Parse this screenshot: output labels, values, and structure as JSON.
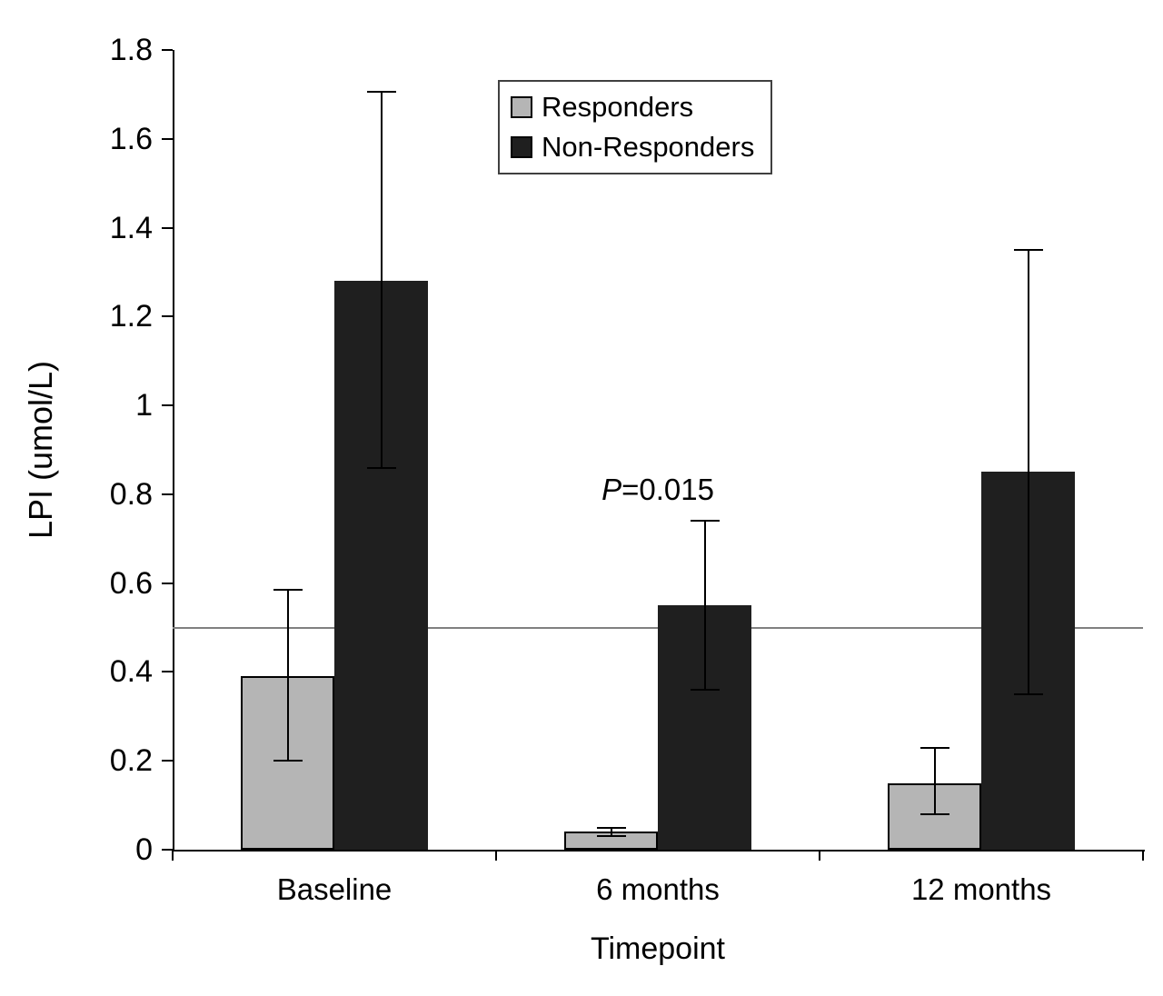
{
  "chart_data": {
    "type": "bar",
    "title": "",
    "xlabel": "Timepoint",
    "ylabel": "LPI (umol/L)",
    "categories": [
      "Baseline",
      "6 months",
      "12 months"
    ],
    "series": [
      {
        "name": "Responders",
        "color": "#b5b5b5",
        "values": [
          0.39,
          0.04,
          0.15
        ],
        "error_low": [
          0.2,
          0.03,
          0.08
        ],
        "error_high": [
          0.585,
          0.05,
          0.23
        ]
      },
      {
        "name": "Non-Responders",
        "color": "#1f1f1f",
        "values": [
          1.28,
          0.55,
          0.85
        ],
        "error_low": [
          0.86,
          0.36,
          0.35
        ],
        "error_high": [
          1.705,
          0.74,
          1.35
        ]
      }
    ],
    "ylim": [
      0,
      1.8
    ],
    "yticks": [
      0,
      0.2,
      0.4,
      0.6,
      0.8,
      1,
      1.2,
      1.4,
      1.6,
      1.8
    ],
    "ytick_labels": [
      "0",
      "0.2",
      "0.4",
      "0.6",
      "0.8",
      "1",
      "1.2",
      "1.4",
      "1.6",
      "1.8"
    ],
    "reference_line": 0.5,
    "annotation": {
      "italic_part": "P",
      "rest_part": "=0.015",
      "category_index": 1,
      "y": 0.81
    },
    "legend_position": "top-center",
    "grid": false
  }
}
